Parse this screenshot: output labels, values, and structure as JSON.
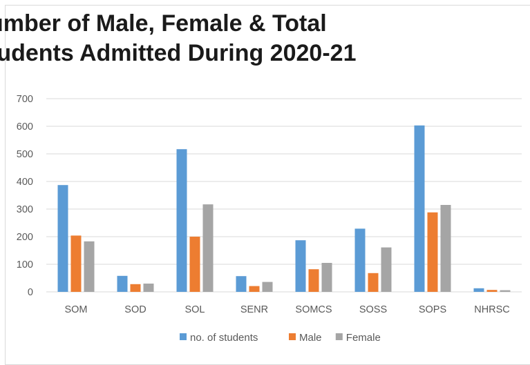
{
  "chart_data": {
    "type": "bar",
    "title_lines": [
      "umber of Male, Female & Total",
      "tudents Admitted During 2020-21"
    ],
    "categories": [
      "SOM",
      "SOD",
      "SOL",
      "SENR",
      "SOMCS",
      "SOSS",
      "SOPS",
      "NHRSC"
    ],
    "series": [
      {
        "name": "no. of students",
        "color": "#5b9bd5",
        "values": [
          387,
          58,
          517,
          57,
          187,
          229,
          603,
          13
        ]
      },
      {
        "name": "Male",
        "color": "#ed7d31",
        "values": [
          204,
          28,
          200,
          21,
          82,
          68,
          288,
          7
        ]
      },
      {
        "name": "Female",
        "color": "#a5a5a5",
        "values": [
          183,
          30,
          317,
          36,
          105,
          161,
          315,
          6
        ]
      }
    ],
    "ylim": [
      0,
      700
    ],
    "yticks": [
      0,
      100,
      200,
      300,
      400,
      500,
      600,
      700
    ],
    "grid": true,
    "legend_position": "bottom"
  }
}
